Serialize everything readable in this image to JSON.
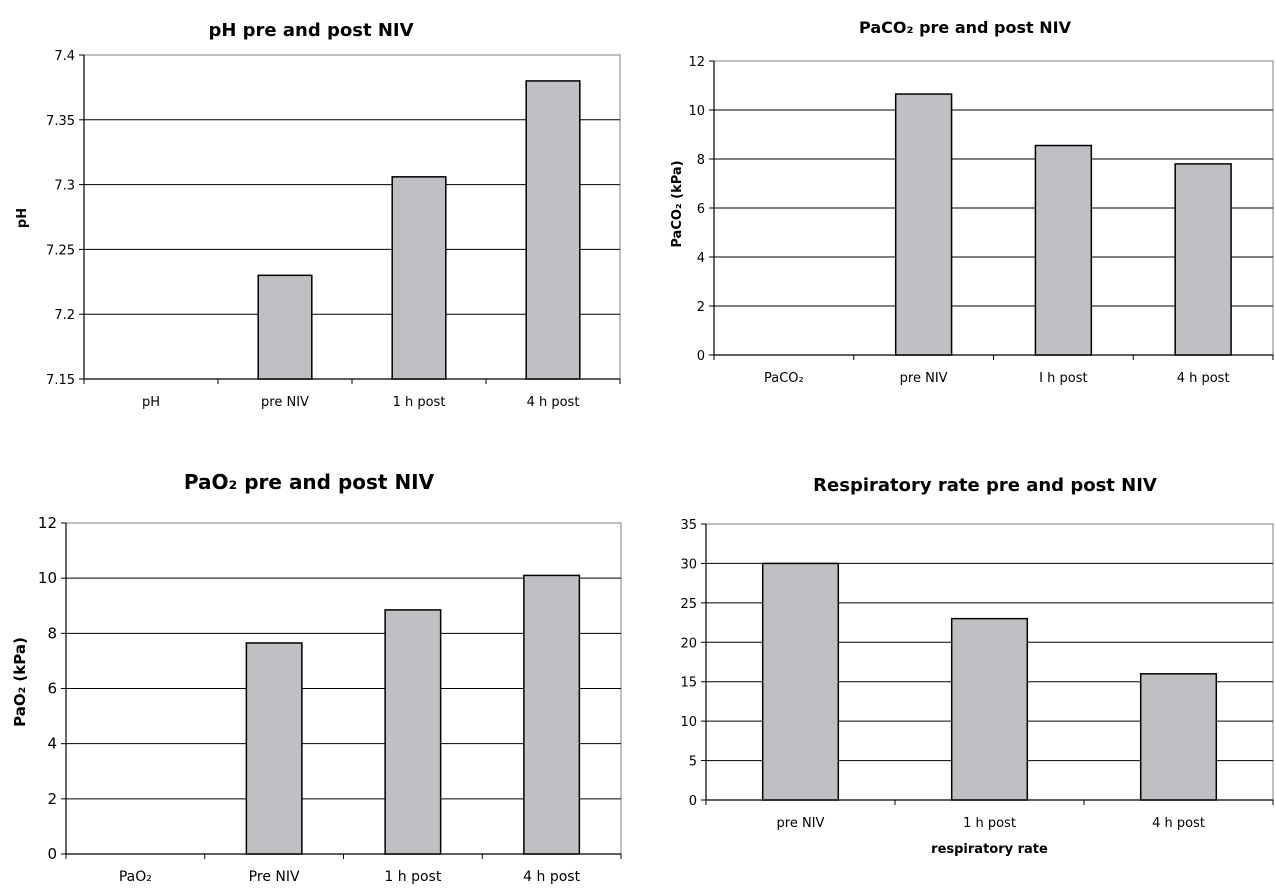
{
  "chart_data": [
    {
      "type": "bar",
      "title": "pH pre and post NIV",
      "ylabel": "pH",
      "xlabel": "",
      "categories": [
        "pH",
        "pre NIV",
        "1 h post",
        "4 h post"
      ],
      "values": [
        null,
        7.23,
        7.306,
        7.38
      ],
      "ylim": [
        7.15,
        7.4
      ],
      "yticks": [
        "7.15",
        "7.2",
        "7.25",
        "7.3",
        "7.35",
        "7.4"
      ],
      "grid": true,
      "bar_color": "#c0c0c4"
    },
    {
      "type": "bar",
      "title": "PaCO₂ pre and post NIV",
      "ylabel": "PaCO₂ (kPa)",
      "xlabel": "",
      "categories": [
        "PaCO₂",
        "pre NIV",
        "I h post",
        "4 h post"
      ],
      "values": [
        null,
        10.65,
        8.55,
        7.8
      ],
      "ylim": [
        0,
        12
      ],
      "yticks": [
        "0",
        "2",
        "4",
        "6",
        "8",
        "10",
        "12"
      ],
      "grid": true,
      "bar_color": "#c0c0c4"
    },
    {
      "type": "bar",
      "title": "PaO₂ pre and post NIV",
      "ylabel": "PaO₂ (kPa)",
      "xlabel": "",
      "categories": [
        "PaO₂",
        "Pre NIV",
        "1 h post",
        "4 h post"
      ],
      "values": [
        null,
        7.65,
        8.85,
        10.1
      ],
      "ylim": [
        0,
        12
      ],
      "yticks": [
        "0",
        "2",
        "4",
        "6",
        "8",
        "10",
        "12"
      ],
      "grid": true,
      "bar_color": "#c0c0c4"
    },
    {
      "type": "bar",
      "title": "Respiratory rate pre and post NIV",
      "ylabel": "",
      "xlabel": "respiratory rate",
      "categories": [
        "pre NIV",
        "1 h post",
        "4 h post"
      ],
      "values": [
        30,
        23,
        16
      ],
      "ylim": [
        0,
        35
      ],
      "yticks": [
        "0",
        "5",
        "10",
        "15",
        "20",
        "25",
        "30",
        "35"
      ],
      "grid": true,
      "bar_color": "#c0c0c4"
    }
  ]
}
